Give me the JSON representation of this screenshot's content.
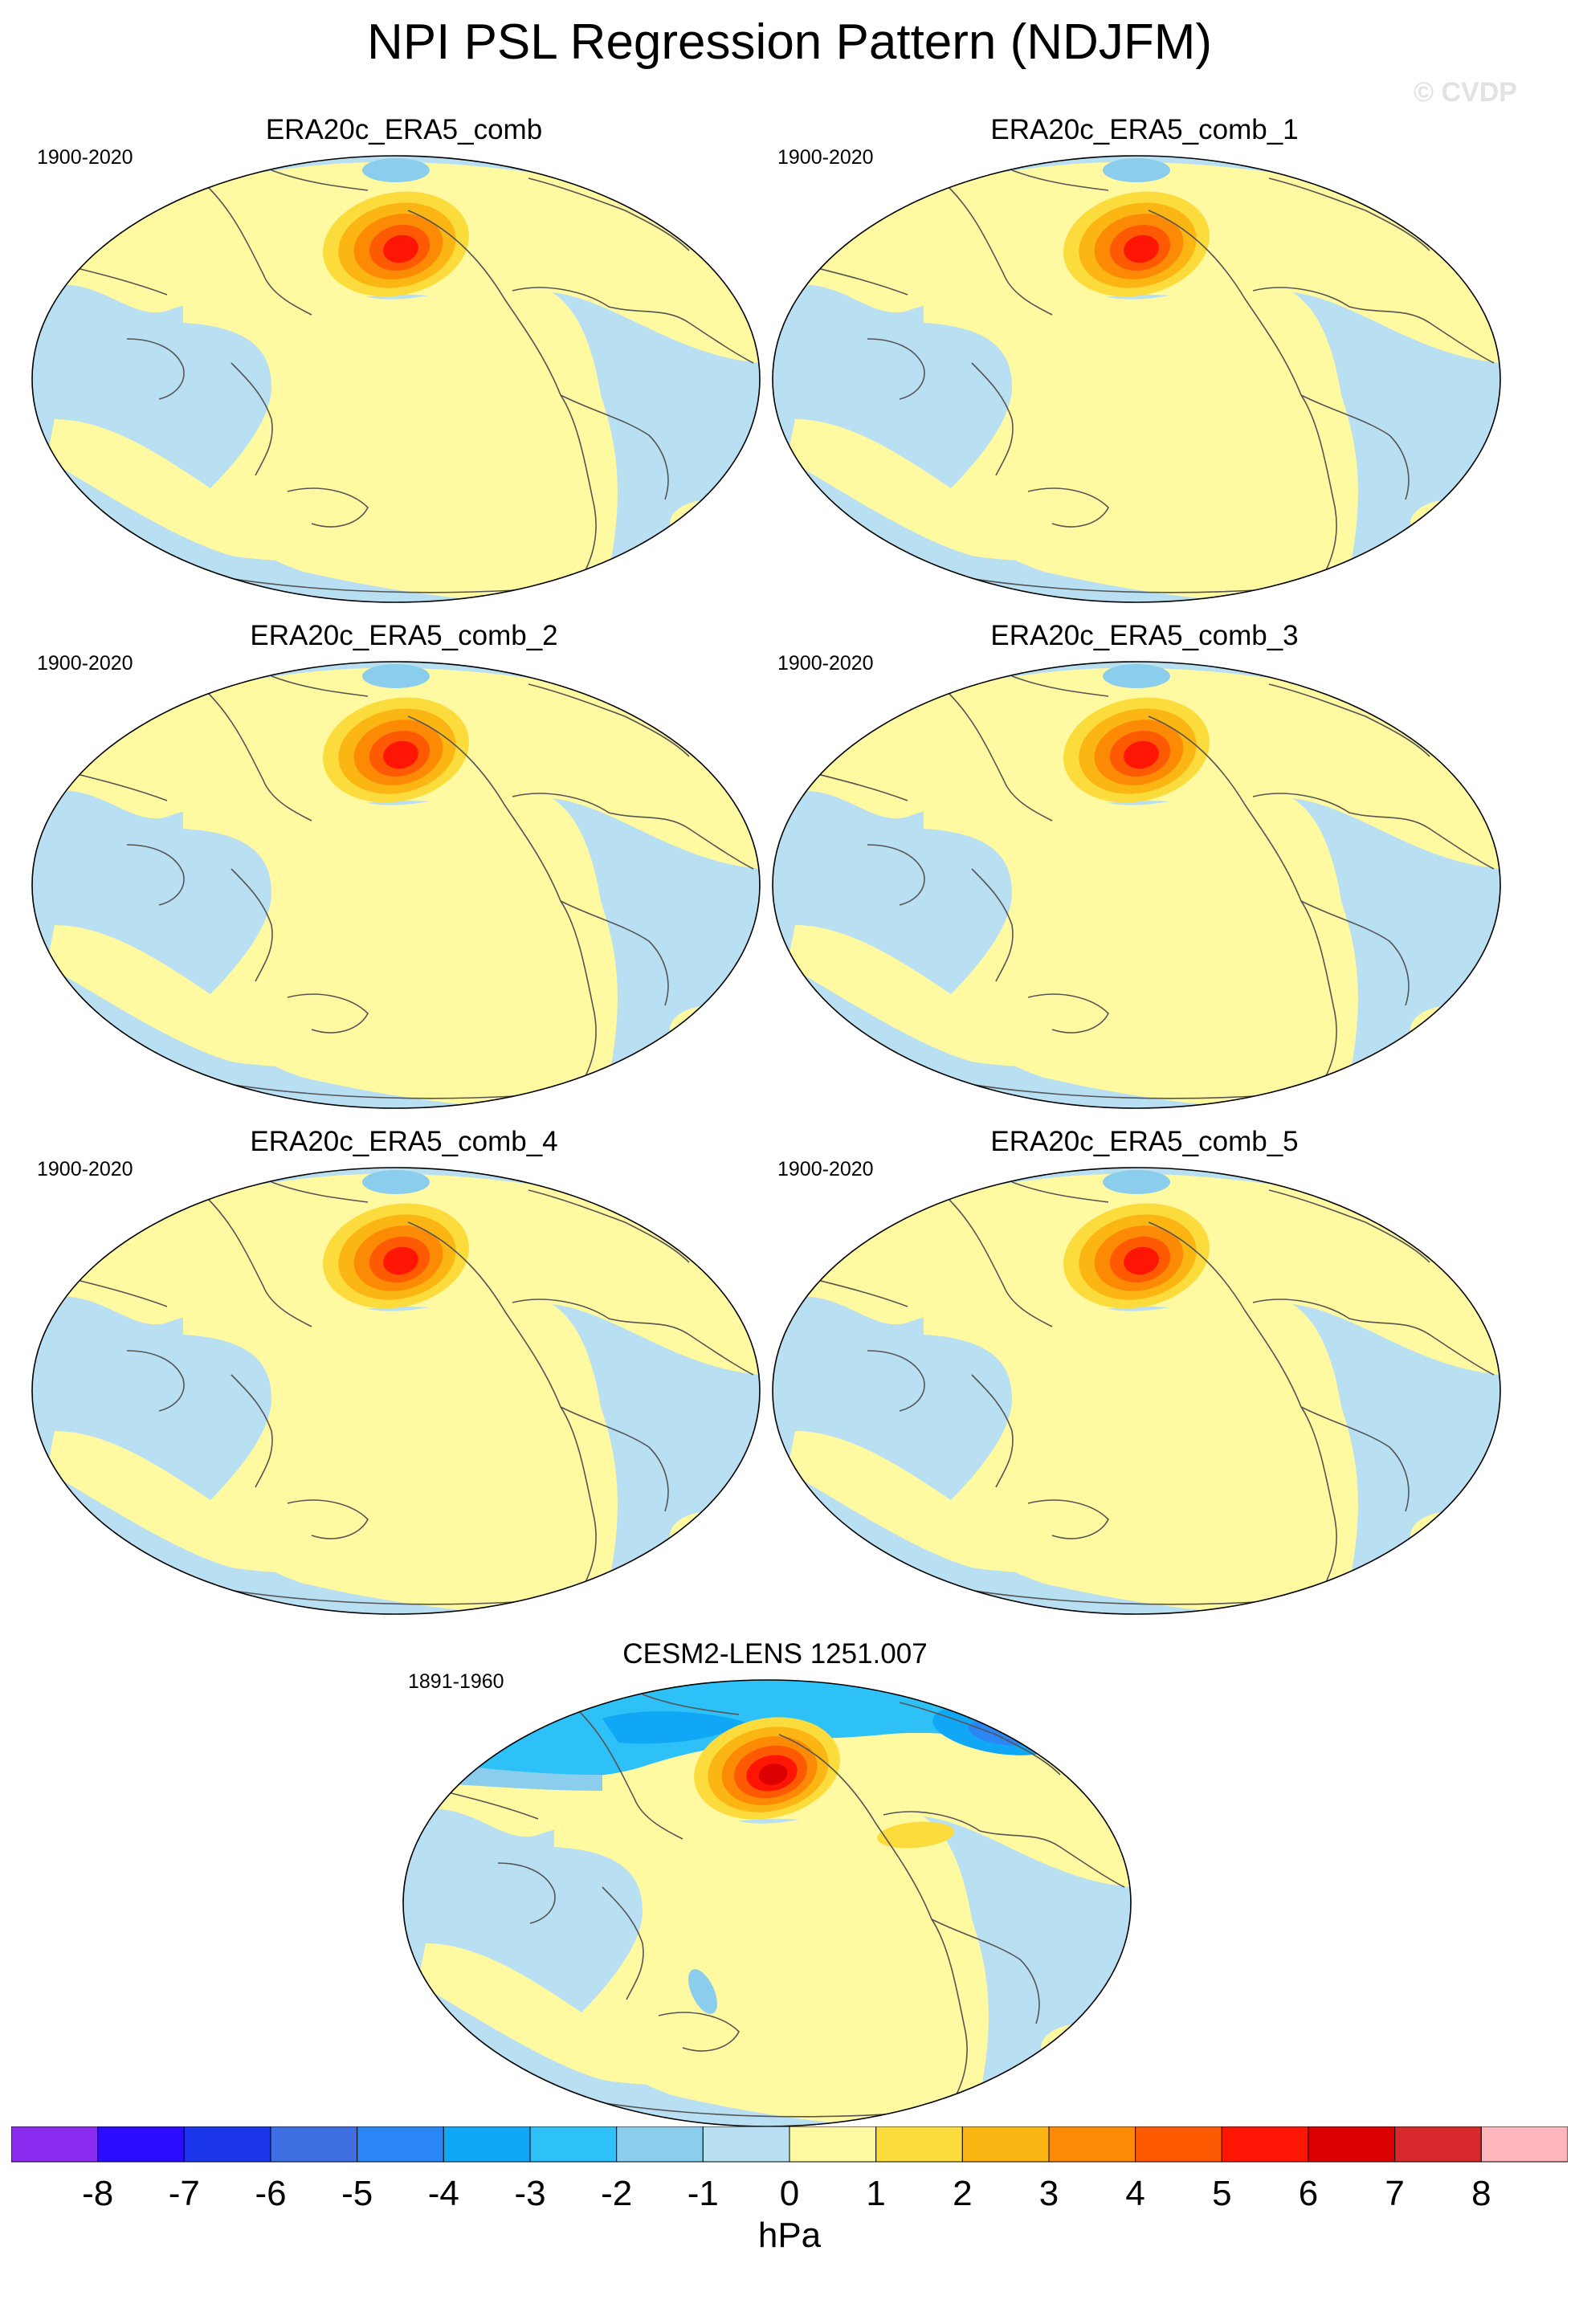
{
  "title": "NPI PSL Regression Pattern (NDJFM)",
  "watermark": "© CVDP",
  "colors": {
    "ocean": "#b9e0f2",
    "land": "#fff9a1",
    "coast": "#555555"
  },
  "chart_data": [
    {
      "type": "heatmap",
      "title": "ERA20c_ERA5_comb",
      "period": "1900-2020",
      "key": "p0"
    },
    {
      "type": "heatmap",
      "title": "ERA20c_ERA5_comb_1",
      "period": "1900-2020",
      "key": "p1"
    },
    {
      "type": "heatmap",
      "title": "ERA20c_ERA5_comb_2",
      "period": "1900-2020",
      "key": "p2"
    },
    {
      "type": "heatmap",
      "title": "ERA20c_ERA5_comb_3",
      "period": "1900-2020",
      "key": "p3"
    },
    {
      "type": "heatmap",
      "title": "ERA20c_ERA5_comb_4",
      "period": "1900-2020",
      "key": "p4"
    },
    {
      "type": "heatmap",
      "title": "ERA20c_ERA5_comb_5",
      "period": "1900-2020",
      "key": "p5"
    },
    {
      "type": "heatmap",
      "title": "CESM2-LENS 1251.007",
      "period": "1891-1960",
      "key": "p6"
    }
  ],
  "colorbar": {
    "unit": "hPa",
    "labels": [
      "-8",
      "-7",
      "-6",
      "-5",
      "-4",
      "-3",
      "-2",
      "-1",
      "0",
      "1",
      "2",
      "3",
      "4",
      "5",
      "6",
      "7",
      "8"
    ],
    "colors": [
      "#8c2bf0",
      "#2b0cff",
      "#1b36ea",
      "#3f6ee3",
      "#2a86f4",
      "#11a7f7",
      "#2dc1f8",
      "#8bcdec",
      "#b9e0f2",
      "#fff9a1",
      "#fcdc3c",
      "#fbb614",
      "#fc8a05",
      "#fd5a03",
      "#fe1503",
      "#dd0000",
      "#d7282b",
      "#ffb6bc"
    ]
  }
}
